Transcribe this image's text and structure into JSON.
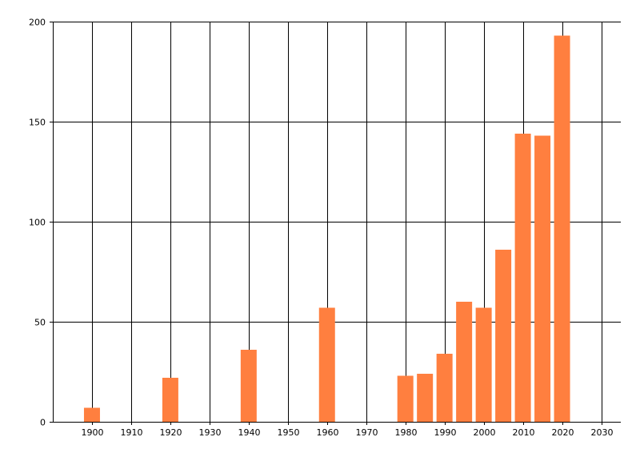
{
  "chart_data": {
    "type": "bar",
    "x": [
      1900,
      1920,
      1940,
      1960,
      1980,
      1985,
      1990,
      1995,
      2000,
      2005,
      2010,
      2015,
      2020
    ],
    "values": [
      7,
      22,
      36,
      57,
      23,
      24,
      34,
      60,
      57,
      86,
      144,
      143,
      193
    ],
    "xlim": [
      1890,
      2035
    ],
    "ylim": [
      0,
      200
    ],
    "x_ticks": [
      "1900",
      "1910",
      "1920",
      "1930",
      "1940",
      "1950",
      "1960",
      "1970",
      "1980",
      "1990",
      "2000",
      "2010",
      "2020",
      "2030"
    ],
    "y_ticks": [
      "0",
      "50",
      "100",
      "150",
      "200"
    ],
    "bar_color": "#ff7f3f",
    "grid": true,
    "title": "",
    "xlabel": "",
    "ylabel": ""
  }
}
